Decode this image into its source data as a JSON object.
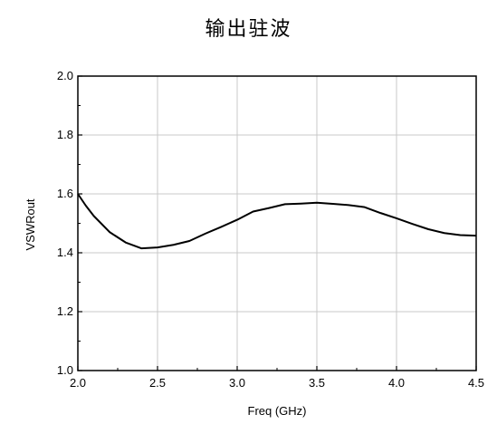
{
  "chart_data": {
    "type": "line",
    "title": "输出驻波",
    "xlabel": "Freq (GHz)",
    "ylabel": "VSWRout",
    "xlim": [
      2.0,
      4.5
    ],
    "ylim": [
      1.0,
      2.0
    ],
    "x_ticks": [
      "2.0",
      "2.5",
      "3.0",
      "3.5",
      "4.0",
      "4.5"
    ],
    "y_ticks": [
      "1.0",
      "1.2",
      "1.4",
      "1.6",
      "1.8",
      "2.0"
    ],
    "grid": true,
    "series": [
      {
        "x": [
          2.0,
          2.05,
          2.1,
          2.2,
          2.3,
          2.4,
          2.5,
          2.6,
          2.7,
          2.8,
          2.9,
          3.0,
          3.1,
          3.2,
          3.3,
          3.4,
          3.5,
          3.6,
          3.7,
          3.8,
          3.9,
          4.0,
          4.1,
          4.2,
          4.3,
          4.4,
          4.5
        ],
        "values": [
          1.6,
          1.56,
          1.525,
          1.47,
          1.435,
          1.415,
          1.418,
          1.427,
          1.44,
          1.465,
          1.488,
          1.512,
          1.54,
          1.552,
          1.565,
          1.567,
          1.57,
          1.566,
          1.562,
          1.555,
          1.535,
          1.517,
          1.498,
          1.48,
          1.467,
          1.46,
          1.458
        ],
        "color": "#000000"
      }
    ]
  }
}
